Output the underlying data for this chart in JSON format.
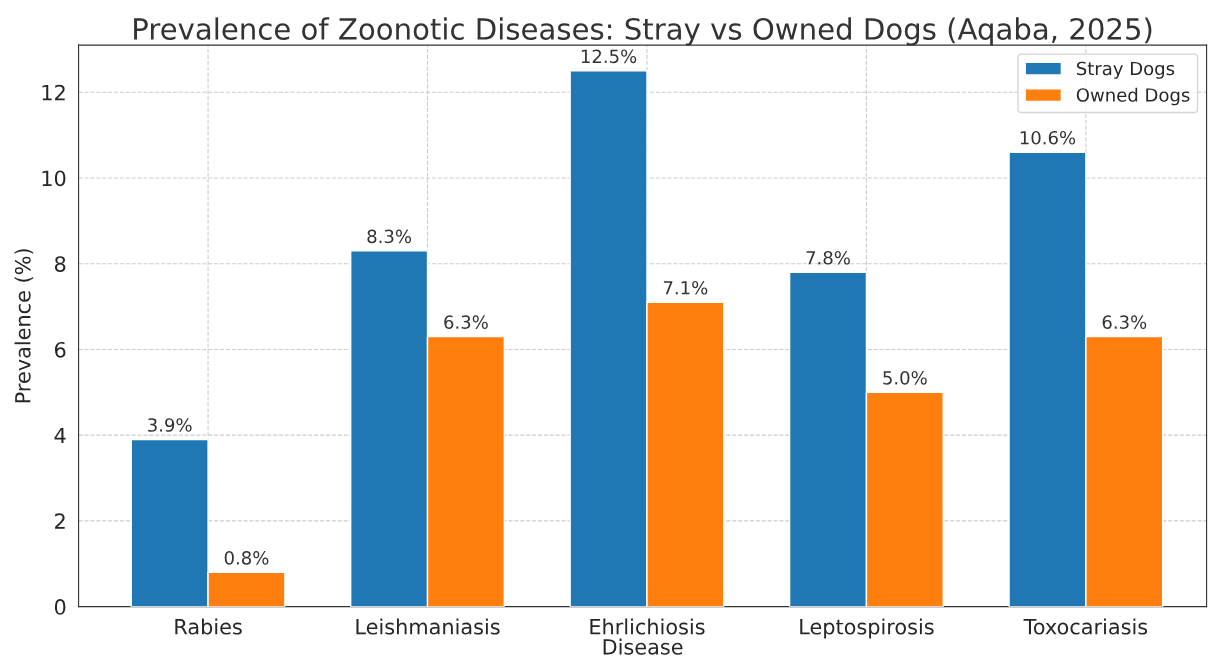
{
  "chart_data": {
    "type": "bar",
    "title": "Prevalence of Zoonotic Diseases: Stray vs Owned Dogs (Aqaba, 2025)",
    "xlabel": "Disease",
    "ylabel": "Prevalence (%)",
    "categories": [
      "Rabies",
      "Leishmaniasis",
      "Ehrlichiosis",
      "Leptospirosis",
      "Toxocariasis"
    ],
    "series": [
      {
        "name": "Stray Dogs",
        "color": "#1f77b4",
        "values": [
          3.9,
          8.3,
          12.5,
          7.8,
          10.6
        ],
        "value_labels": [
          "3.9%",
          "8.3%",
          "12.5%",
          "7.8%",
          "10.6%"
        ]
      },
      {
        "name": "Owned Dogs",
        "color": "#ff7f0e",
        "values": [
          0.8,
          6.3,
          7.1,
          5.0,
          6.3
        ],
        "value_labels": [
          "0.8%",
          "6.3%",
          "7.1%",
          "5.0%",
          "6.3%"
        ]
      }
    ],
    "ylim": [
      0,
      13.1
    ],
    "yticks": [
      0,
      2,
      4,
      6,
      8,
      10,
      12
    ],
    "grid": true,
    "legend": "top right"
  }
}
